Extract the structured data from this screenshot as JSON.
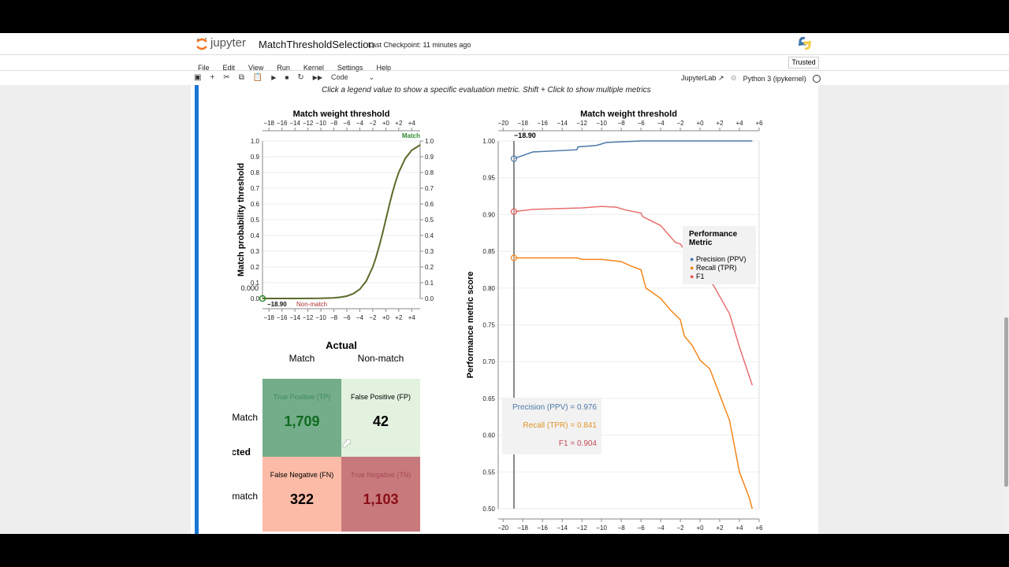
{
  "header": {
    "logo_text": "jupyter",
    "notebook_title": "MatchThresholdSelection",
    "checkpoint": "Last Checkpoint: 11 minutes ago",
    "trusted": "Trusted",
    "jupyterlab": "JupyterLab",
    "kernel": "Python 3 (ipykernel)"
  },
  "menu": [
    "File",
    "Edit",
    "View",
    "Run",
    "Kernel",
    "Settings",
    "Help"
  ],
  "toolbar": {
    "cell_type": "Code",
    "icons": [
      "save-icon",
      "add-icon",
      "cut-icon",
      "copy-icon",
      "paste-icon",
      "run-icon",
      "stop-icon",
      "restart-icon",
      "fast-forward-icon"
    ]
  },
  "instruction": "Click a legend value to show a specific evaluation metric. Shift + Click to show multiple metrics",
  "threshold_label": "−18.90",
  "chart_data": [
    {
      "type": "line",
      "title": "Match weight threshold",
      "xlabel": "Match weight threshold",
      "ylabel": "Match probability threshold",
      "xlim": [
        -19,
        5.3
      ],
      "ylim": [
        0,
        1
      ],
      "xticks": [
        "−18",
        "−16",
        "−14",
        "−12",
        "−10",
        "−8",
        "−6",
        "−4",
        "−2",
        "+0",
        "+2",
        "+4"
      ],
      "xtick_values": [
        -18,
        -16,
        -14,
        -12,
        -10,
        -8,
        -6,
        -4,
        -2,
        0,
        2,
        4
      ],
      "yticks": [
        "0.0",
        "0.1",
        "0.2",
        "0.3",
        "0.4",
        "0.5",
        "0.6",
        "0.7",
        "0.8",
        "0.9",
        "1.0"
      ],
      "x": [
        -19,
        -14,
        -10,
        -8,
        -7,
        -6,
        -5,
        -4,
        -3,
        -2,
        -1.5,
        -1,
        -0.5,
        0,
        0.5,
        1,
        1.5,
        2,
        3,
        4,
        5.3
      ],
      "y": [
        0,
        0,
        0.001,
        0.004,
        0.008,
        0.015,
        0.03,
        0.059,
        0.111,
        0.2,
        0.261,
        0.333,
        0.414,
        0.5,
        0.586,
        0.667,
        0.739,
        0.8,
        0.889,
        0.941,
        0.975
      ],
      "line_color": "#5a6b2a",
      "annotations": {
        "top": "Match",
        "bottom": "Non-match",
        "marker_value": "0.000",
        "marker_x": "−18.90"
      }
    },
    {
      "type": "line",
      "title": "Match weight threshold",
      "xlabel": "Match weight threshold",
      "ylabel": "Performance metric score",
      "xlim": [
        -20.5,
        6
      ],
      "ylim": [
        0.5,
        1
      ],
      "xticks": [
        "−20",
        "−18",
        "−16",
        "−14",
        "−12",
        "−10",
        "−8",
        "−6",
        "−4",
        "−2",
        "+0",
        "+2",
        "+4",
        "+6"
      ],
      "xtick_values": [
        -20,
        -18,
        -16,
        -14,
        -12,
        -10,
        -8,
        -6,
        -4,
        -2,
        0,
        2,
        4,
        6
      ],
      "yticks": [
        "0.50",
        "0.55",
        "0.60",
        "0.65",
        "0.70",
        "0.75",
        "0.80",
        "0.85",
        "0.90",
        "0.95",
        "1.00"
      ],
      "threshold": -18.9,
      "legend": {
        "title": "Performance Metric",
        "position": "right"
      },
      "series": [
        {
          "name": "Precision (PPV)",
          "color": "#4c78a8",
          "x": [
            -18.9,
            -17,
            -12.5,
            -12.4,
            -10.5,
            -9.5,
            -6,
            5.3
          ],
          "y": [
            0.976,
            0.985,
            0.988,
            0.992,
            0.994,
            0.998,
            1.0,
            1.0
          ]
        },
        {
          "name": "Recall (TPR)",
          "color": "#f58518",
          "x": [
            -18.9,
            -12.5,
            -12,
            -10,
            -8,
            -7,
            -6,
            -5.8,
            -5.5,
            -4,
            -3,
            -2,
            -1.6,
            -0.8,
            0,
            1,
            2,
            3,
            4,
            5,
            5.3
          ],
          "y": [
            0.841,
            0.841,
            0.839,
            0.839,
            0.836,
            0.83,
            0.825,
            0.815,
            0.8,
            0.786,
            0.77,
            0.757,
            0.735,
            0.722,
            0.702,
            0.69,
            0.655,
            0.62,
            0.55,
            0.515,
            0.5
          ]
        },
        {
          "name": "F1",
          "color": "#e45756",
          "x": [
            -18.9,
            -17,
            -12,
            -10,
            -8.5,
            -7.5,
            -6,
            -5.8,
            -4,
            -2.5,
            -2,
            -1,
            0,
            1,
            1.4,
            3,
            4,
            5.3
          ],
          "y": [
            0.904,
            0.907,
            0.909,
            0.911,
            0.91,
            0.906,
            0.902,
            0.897,
            0.885,
            0.862,
            0.86,
            0.84,
            0.825,
            0.81,
            0.803,
            0.765,
            0.72,
            0.668
          ]
        }
      ],
      "tooltip": [
        "Precision (PPV) = 0.976",
        "Recall (TPR) = 0.841",
        "F1 = 0.904"
      ]
    }
  ],
  "confusion": {
    "actual": "Actual",
    "predicted": "Predicted",
    "col_labels": [
      "Match",
      "Non-match"
    ],
    "row_labels": [
      "Match",
      "Non-match"
    ],
    "cells": [
      {
        "label": "True Positive (TP)",
        "value": "1,709"
      },
      {
        "label": "False Positive (FP)",
        "value": "42"
      },
      {
        "label": "False Negative (FN)",
        "value": "322"
      },
      {
        "label": "True Negative (TN)",
        "value": "1,103"
      }
    ]
  }
}
